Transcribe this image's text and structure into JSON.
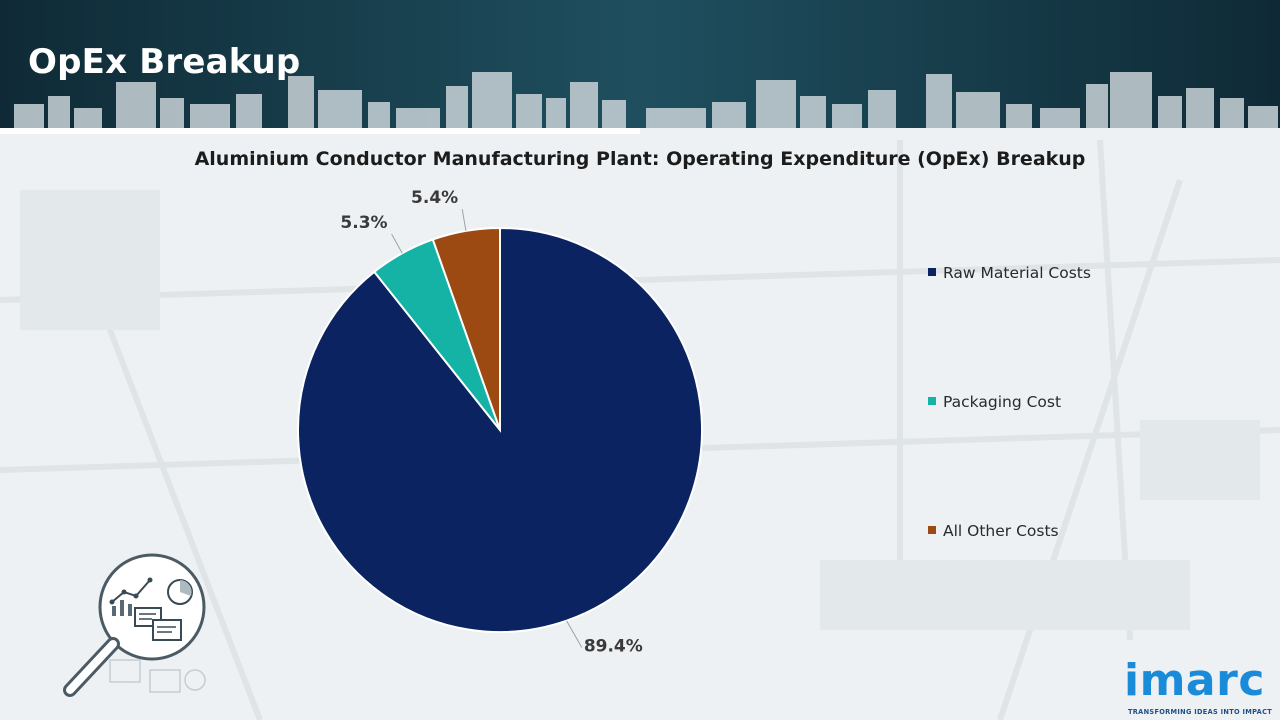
{
  "header": {
    "title": "OpEx Breakup"
  },
  "colors": {
    "header_bg": "#16394a",
    "raw_material": "#0b2361",
    "packaging": "#14b3a6",
    "other": "#9c4a12",
    "logo_blue": "#1a8bd8"
  },
  "chart_data": {
    "type": "pie",
    "title": "Aluminium Conductor Manufacturing Plant: Operating Expenditure (OpEx) Breakup",
    "slices": [
      {
        "name": "Raw Material Costs",
        "value": 89.4,
        "label": "89.4%",
        "color": "#0b2361"
      },
      {
        "name": "Packaging Cost",
        "value": 5.3,
        "label": "5.3%",
        "color": "#14b3a6"
      },
      {
        "name": "All Other Costs",
        "value": 5.4,
        "label": "5.4%",
        "color": "#9c4a12"
      }
    ],
    "legend_position": "right"
  },
  "logo": {
    "text": "imarc",
    "tagline": "TRANSFORMING IDEAS INTO IMPACT"
  },
  "icons": [
    "magnifier-analytics-icon",
    "city-skyline-decoration"
  ]
}
